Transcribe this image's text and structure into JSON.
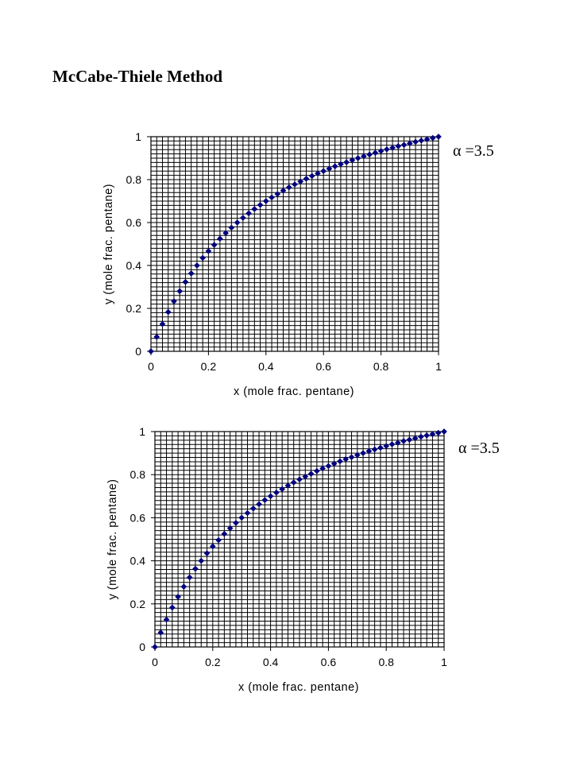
{
  "page": {
    "title": "McCabe-Thiele Method"
  },
  "chart_data": [
    {
      "type": "scatter",
      "title": "",
      "xlabel": "x (mole frac. pentane)",
      "ylabel": "y (mole frac. pentane)",
      "xlim": [
        0,
        1
      ],
      "ylim": [
        0,
        1
      ],
      "x_ticks": [
        0,
        0.2,
        0.4,
        0.6,
        0.8,
        1
      ],
      "y_ticks": [
        0,
        0.2,
        0.4,
        0.6,
        0.8,
        1
      ],
      "x_tick_labels": [
        "0",
        "0.2",
        "0.4",
        "0.6",
        "0.8",
        "1"
      ],
      "y_tick_labels": [
        "0",
        "0.2",
        "0.4",
        "0.6",
        "0.8",
        "1"
      ],
      "grid": true,
      "grid_step": 0.02,
      "annotation": "α =3.5",
      "marker_color": "#00007f",
      "series": [
        {
          "x": [
            0.0,
            0.02,
            0.04,
            0.06,
            0.08,
            0.1,
            0.12,
            0.14,
            0.16,
            0.18,
            0.2,
            0.22,
            0.24,
            0.26,
            0.28,
            0.3,
            0.32,
            0.34,
            0.36,
            0.38,
            0.4,
            0.42,
            0.44,
            0.46,
            0.48,
            0.5,
            0.52,
            0.54,
            0.56,
            0.58,
            0.6,
            0.62,
            0.64,
            0.66,
            0.68,
            0.7,
            0.72,
            0.74,
            0.76,
            0.78,
            0.8,
            0.82,
            0.84,
            0.86,
            0.88,
            0.9,
            0.92,
            0.94,
            0.96,
            0.98,
            1.0
          ],
          "y": [
            0.0,
            0.067,
            0.127,
            0.183,
            0.233,
            0.28,
            0.323,
            0.363,
            0.4,
            0.435,
            0.467,
            0.496,
            0.525,
            0.551,
            0.576,
            0.6,
            0.622,
            0.643,
            0.663,
            0.682,
            0.7,
            0.717,
            0.733,
            0.749,
            0.764,
            0.778,
            0.791,
            0.804,
            0.817,
            0.829,
            0.84,
            0.851,
            0.862,
            0.872,
            0.881,
            0.891,
            0.9,
            0.909,
            0.917,
            0.925,
            0.933,
            0.941,
            0.948,
            0.956,
            0.962,
            0.969,
            0.976,
            0.982,
            0.988,
            0.994,
            1.0
          ]
        }
      ]
    },
    {
      "type": "scatter",
      "title": "",
      "xlabel": "x (mole frac. pentane)",
      "ylabel": "y (mole frac. pentane)",
      "xlim": [
        0,
        1
      ],
      "ylim": [
        0,
        1
      ],
      "x_ticks": [
        0,
        0.2,
        0.4,
        0.6,
        0.8,
        1
      ],
      "y_ticks": [
        0,
        0.2,
        0.4,
        0.6,
        0.8,
        1
      ],
      "x_tick_labels": [
        "0",
        "0.2",
        "0.4",
        "0.6",
        "0.8",
        "1"
      ],
      "y_tick_labels": [
        "0",
        "0.2",
        "0.4",
        "0.6",
        "0.8",
        "1"
      ],
      "grid": true,
      "grid_step": 0.02,
      "annotation": "α =3.5",
      "marker_color": "#00007f",
      "series": [
        {
          "x": [
            0.0,
            0.02,
            0.04,
            0.06,
            0.08,
            0.1,
            0.12,
            0.14,
            0.16,
            0.18,
            0.2,
            0.22,
            0.24,
            0.26,
            0.28,
            0.3,
            0.32,
            0.34,
            0.36,
            0.38,
            0.4,
            0.42,
            0.44,
            0.46,
            0.48,
            0.5,
            0.52,
            0.54,
            0.56,
            0.58,
            0.6,
            0.62,
            0.64,
            0.66,
            0.68,
            0.7,
            0.72,
            0.74,
            0.76,
            0.78,
            0.8,
            0.82,
            0.84,
            0.86,
            0.88,
            0.9,
            0.92,
            0.94,
            0.96,
            0.98,
            1.0
          ],
          "y": [
            0.0,
            0.067,
            0.127,
            0.183,
            0.233,
            0.28,
            0.323,
            0.363,
            0.4,
            0.435,
            0.467,
            0.496,
            0.525,
            0.551,
            0.576,
            0.6,
            0.622,
            0.643,
            0.663,
            0.682,
            0.7,
            0.717,
            0.733,
            0.749,
            0.764,
            0.778,
            0.791,
            0.804,
            0.817,
            0.829,
            0.84,
            0.851,
            0.862,
            0.872,
            0.881,
            0.891,
            0.9,
            0.909,
            0.917,
            0.925,
            0.933,
            0.941,
            0.948,
            0.956,
            0.962,
            0.969,
            0.976,
            0.982,
            0.988,
            0.994,
            1.0
          ]
        }
      ]
    }
  ]
}
